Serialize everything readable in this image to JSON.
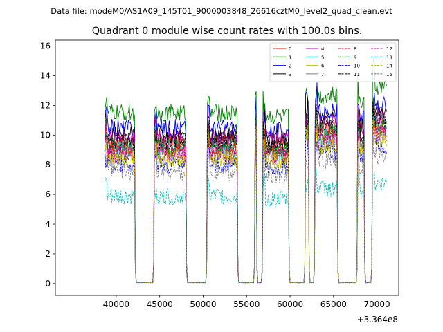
{
  "suptitle": "Data file: modeM0/AS1A09_145T01_9000003848_26616cztM0_level2_quad_clean.evt",
  "chart_data": {
    "type": "line",
    "title": "Quadrant 0 module wise count rates with 100.0s bins.",
    "xlabel": "",
    "ylabel": "",
    "x_offset_label": "+3.364e8",
    "xlim": [
      33000,
      72500
    ],
    "ylim": [
      -0.8,
      16.4
    ],
    "xticks": [
      40000,
      45000,
      50000,
      55000,
      60000,
      65000,
      70000
    ],
    "xtick_labels": [
      "40000",
      "45000",
      "50000",
      "55000",
      "60000",
      "65000",
      "70000"
    ],
    "yticks": [
      0,
      2,
      4,
      6,
      8,
      10,
      12,
      14,
      16
    ],
    "ytick_labels": [
      "0",
      "2",
      "4",
      "6",
      "8",
      "10",
      "12",
      "14",
      "16"
    ],
    "grid": false,
    "legend_position": "upper right",
    "legend_columns": 4,
    "observation_segments": [
      {
        "start": 38700,
        "end": 42100,
        "level": 1.0
      },
      {
        "start": 44400,
        "end": 48000,
        "level": 1.0
      },
      {
        "start": 50500,
        "end": 53900,
        "level": 1.0
      },
      {
        "start": 56000,
        "end": 56100,
        "level": 1.05
      },
      {
        "start": 56900,
        "end": 59800,
        "level": 0.98
      },
      {
        "start": 61800,
        "end": 62100,
        "level": 1.08
      },
      {
        "start": 62900,
        "end": 65400,
        "level": 1.1
      },
      {
        "start": 67800,
        "end": 68500,
        "level": 1.05
      },
      {
        "start": 69500,
        "end": 71100,
        "level": 1.15
      }
    ],
    "gap_level": 0.05,
    "series": [
      {
        "name": "0",
        "color": "#ff0000",
        "dashed": false,
        "mean_rate": 9.5
      },
      {
        "name": "1",
        "color": "#008000",
        "dashed": false,
        "mean_rate": 11.5
      },
      {
        "name": "2",
        "color": "#0000ff",
        "dashed": false,
        "mean_rate": 10.5
      },
      {
        "name": "3",
        "color": "#000000",
        "dashed": false,
        "mean_rate": 10.0
      },
      {
        "name": "4",
        "color": "#bf00bf",
        "dashed": false,
        "mean_rate": 9.8
      },
      {
        "name": "5",
        "color": "#00bfbf",
        "dashed": false,
        "mean_rate": 9.0
      },
      {
        "name": "6",
        "color": "#bfbf00",
        "dashed": false,
        "mean_rate": 8.5
      },
      {
        "name": "7",
        "color": "#808080",
        "dashed": false,
        "mean_rate": 9.2
      },
      {
        "name": "8",
        "color": "#ff0000",
        "dashed": true,
        "mean_rate": 9.0
      },
      {
        "name": "9",
        "color": "#008000",
        "dashed": true,
        "mean_rate": 9.3
      },
      {
        "name": "10",
        "color": "#0000ff",
        "dashed": true,
        "mean_rate": 8.0
      },
      {
        "name": "11",
        "color": "#000000",
        "dashed": true,
        "mean_rate": 9.6
      },
      {
        "name": "12",
        "color": "#bf00bf",
        "dashed": true,
        "mean_rate": 8.7
      },
      {
        "name": "13",
        "color": "#00bfbf",
        "dashed": true,
        "mean_rate": 5.8
      },
      {
        "name": "14",
        "color": "#bfbf00",
        "dashed": true,
        "mean_rate": 8.4
      },
      {
        "name": "15",
        "color": "#808080",
        "dashed": true,
        "mean_rate": 7.5
      }
    ]
  }
}
